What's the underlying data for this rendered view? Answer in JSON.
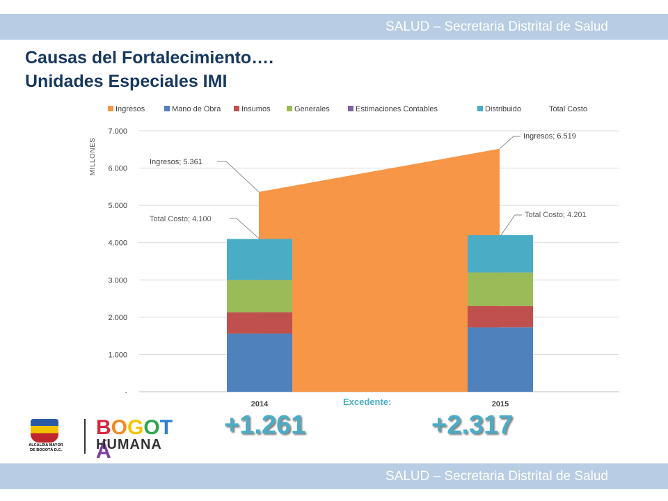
{
  "header": {
    "band_text": "SALUD – Secretaria Distrital de Salud"
  },
  "footer": {
    "band_text": "SALUD – Secretaria Distrital de Salud"
  },
  "title": {
    "line1": "Causas del Fortalecimiento….",
    "line2": "Unidades Especiales IMI"
  },
  "chart_data": {
    "type": "bar",
    "stacked": true,
    "categories": [
      "2014",
      "2015"
    ],
    "ylabel": "MILLONES",
    "ylim": [
      0,
      7000
    ],
    "yticks": [
      0,
      1000,
      2000,
      3000,
      4000,
      5000,
      6000,
      7000
    ],
    "ytick_labels": [
      "-",
      "1.000",
      "2.000",
      "3.000",
      "4.000",
      "5.000",
      "6.000",
      "7.000"
    ],
    "grid": true,
    "legend_position": "top",
    "area_series": {
      "name": "Ingresos",
      "values": [
        5361,
        6519
      ],
      "color": "#f79646"
    },
    "series": [
      {
        "name": "Mano de Obra",
        "values": [
          1560,
          1730
        ],
        "color": "#4f81bd"
      },
      {
        "name": "Insumos",
        "values": [
          570,
          570
        ],
        "color": "#c0504d"
      },
      {
        "name": "Generales",
        "values": [
          870,
          900
        ],
        "color": "#9bbb59"
      },
      {
        "name": "Estimaciones Contables",
        "values": [
          0,
          0
        ],
        "color": "#8064a2"
      },
      {
        "name": "Distribuido",
        "values": [
          1100,
          1001
        ],
        "color": "#4bacc6"
      }
    ],
    "totals_series": {
      "name": "Total Costo",
      "values": [
        4100,
        4201
      ]
    },
    "legend": [
      "Ingresos",
      "Mano de Obra",
      "Insumos",
      "Generales",
      "Estimaciones Contables",
      "Distribuido",
      "Total Costo"
    ],
    "annotations": [
      {
        "prefix": "Ingresos;",
        "value": "5.361"
      },
      {
        "prefix": "Ingresos;",
        "value": "6.519"
      },
      {
        "prefix": "Total Costo;",
        "value": "4.100"
      },
      {
        "prefix": "Total Costo;",
        "value": "4.201"
      }
    ]
  },
  "excedente": {
    "label": "Excedente:",
    "values": [
      "+1.261",
      "+2.317"
    ]
  },
  "logos": {
    "alcaldia_text": "ALCALDÍA MAYOR DE BOGOTÁ D.C.",
    "bogota_text": "BOGOTÁ",
    "humana_text": "HUMANA",
    "bogota_colors": [
      "#d7263d",
      "#f08a24",
      "#f2c300",
      "#2ea44f",
      "#2a7fd4",
      "#7b3fa0"
    ]
  }
}
